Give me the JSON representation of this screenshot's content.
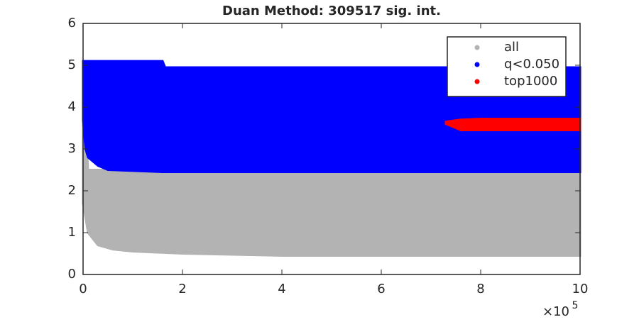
{
  "chart_data": {
    "type": "scatter",
    "title": "Duan Method: 309517 sig. int.",
    "xlim": [
      0,
      1000000
    ],
    "ylim": [
      0,
      6
    ],
    "xticks": [
      {
        "value": 0,
        "label": "0"
      },
      {
        "value": 200000,
        "label": "2"
      },
      {
        "value": 400000,
        "label": "4"
      },
      {
        "value": 600000,
        "label": "6"
      },
      {
        "value": 800000,
        "label": "8"
      },
      {
        "value": 1000000,
        "label": "10"
      }
    ],
    "x_exponent_label": {
      "base": "×10",
      "exponent": "5"
    },
    "yticks": [
      0,
      1,
      2,
      3,
      4,
      5,
      6
    ],
    "legend_position": "northeast",
    "series": [
      {
        "name": "all",
        "color": "#b3b3b3",
        "x": [
          0,
          10000,
          30000,
          60000,
          100000,
          200000,
          400000,
          700000,
          1000000
        ],
        "high": [
          5,
          2.5,
          2.5,
          2.5,
          2.5,
          2.5,
          2.5,
          2.5,
          2.5
        ],
        "low": [
          1.7,
          1.0,
          0.7,
          0.6,
          0.55,
          0.5,
          0.45,
          0.45,
          0.45
        ]
      },
      {
        "name": "q<0.050",
        "color": "#0000ff",
        "x": [
          0,
          5000,
          10000,
          30000,
          50000,
          160000,
          165000,
          1000000
        ],
        "high": [
          5.1,
          5.1,
          5.1,
          5.1,
          5.1,
          5.1,
          4.95,
          4.95
        ],
        "low": [
          3.7,
          3.0,
          2.8,
          2.6,
          2.5,
          2.45,
          2.45,
          2.45
        ]
      },
      {
        "name": "top1000",
        "color": "#ff0000",
        "x": [
          730000,
          760000,
          800000,
          1000000
        ],
        "high": [
          3.65,
          3.7,
          3.72,
          3.72
        ],
        "low": [
          3.6,
          3.45,
          3.45,
          3.45
        ]
      }
    ]
  }
}
